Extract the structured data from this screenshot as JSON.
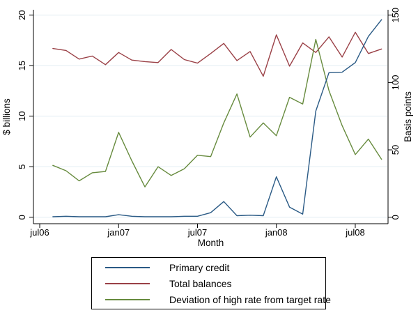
{
  "figure": {
    "xlabel": "Month",
    "ylabel_left": "$ billions",
    "ylabel_right": "Basis points"
  },
  "chart_data": {
    "type": "line",
    "title": "",
    "x_months": [
      "aug06",
      "sep06",
      "oct06",
      "nov06",
      "dec06",
      "jan07",
      "feb07",
      "mar07",
      "apr07",
      "may07",
      "jun07",
      "jul07",
      "aug07",
      "sep07",
      "oct07",
      "nov07",
      "dec07",
      "jan08",
      "feb08",
      "mar08",
      "apr08",
      "may08",
      "jun08",
      "jul08",
      "aug08",
      "sep08"
    ],
    "series": [
      {
        "name": "Total balances",
        "axis": "left",
        "units": "$ billions",
        "color": "#9a4046",
        "values": [
          16.7,
          16.5,
          15.65,
          15.95,
          15.1,
          16.3,
          15.55,
          15.4,
          15.3,
          16.6,
          15.6,
          15.25,
          16.2,
          17.2,
          15.5,
          16.4,
          13.95,
          18.05,
          14.95,
          17.25,
          16.3,
          17.85,
          15.85,
          18.3,
          16.2,
          16.65
        ]
      },
      {
        "name": "Deviation of high rate from target rate",
        "axis": "right",
        "units": "basis points",
        "color": "#678b3e",
        "values": [
          38.5,
          34.5,
          27,
          33,
          34,
          63,
          42,
          22.5,
          37.5,
          31,
          36,
          46,
          45,
          70,
          91.5,
          59.5,
          70,
          60.5,
          89,
          84,
          132,
          94,
          68,
          46.5,
          58,
          43
        ]
      },
      {
        "name": "Primary credit",
        "axis": "left",
        "units": "$ billions",
        "color": "#2a5a85",
        "values": [
          0.05,
          0.1,
          0.05,
          0.05,
          0.05,
          0.25,
          0.1,
          0.05,
          0.05,
          0.05,
          0.1,
          0.1,
          0.45,
          1.55,
          0.15,
          0.2,
          0.15,
          4.0,
          1.0,
          0.3,
          10.5,
          14.3,
          14.35,
          15.3,
          17.9,
          19.55
        ]
      }
    ],
    "axes": {
      "xlabel": "Month",
      "x_tick_labels": [
        "jul06",
        "jan07",
        "jul07",
        "jan08",
        "jul08"
      ],
      "x_tick_month_offsets": [
        -1,
        5,
        11,
        17,
        23
      ],
      "ylabel_left": "$ billions",
      "y_left_ticks": [
        0,
        5,
        10,
        15,
        20
      ],
      "y_left_range": [
        0,
        20
      ],
      "ylabel_right": "Basis points",
      "y_right_ticks": [
        0,
        50,
        100,
        150
      ],
      "y_right_range": [
        0,
        150
      ],
      "grid": true,
      "gridline_color": "#e2edf3",
      "axis_color": "#000000"
    },
    "legend": {
      "position": "bottom-center",
      "border": true,
      "entries_order": [
        "Primary credit",
        "Total balances",
        "Deviation of high rate from target rate"
      ]
    }
  }
}
